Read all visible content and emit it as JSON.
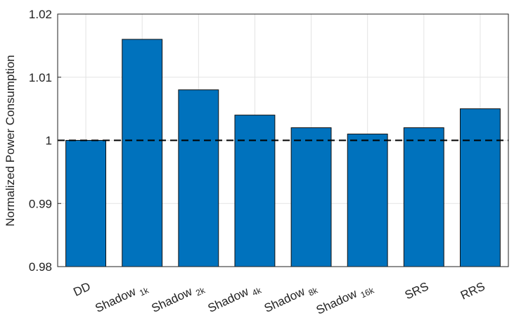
{
  "chart_data": {
    "type": "bar",
    "y_label": "Normalized Power Consumption",
    "categories": [
      "DD",
      "Shadow 1k",
      "Shadow 2k",
      "Shadow 4k",
      "Shadow 8k",
      "Shadow 16k",
      "SRS",
      "RRS"
    ],
    "values": [
      1.0,
      1.016,
      1.008,
      1.004,
      1.002,
      1.001,
      1.002,
      1.005
    ],
    "color": "#0072bd",
    "ylim": [
      0.98,
      1.02
    ],
    "yticks": [
      0.98,
      0.99,
      1,
      1.01,
      1.02
    ],
    "grid": true,
    "reference_line": 1
  }
}
